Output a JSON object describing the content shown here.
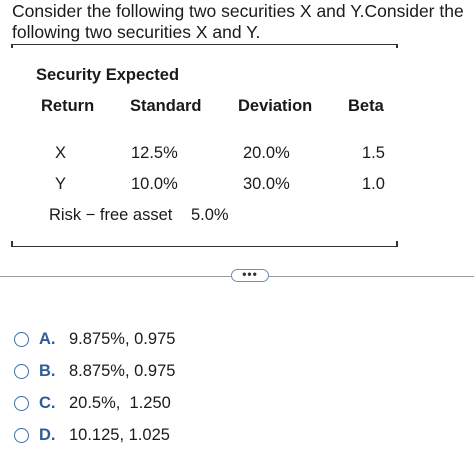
{
  "question": "Consider the following two securities X and Y.Consider the following two securities X and Y.",
  "table": {
    "header1": "Security Expected",
    "headers": [
      "Return",
      "Standard",
      "Deviation",
      "Beta"
    ],
    "rows": [
      {
        "name": "X",
        "expected_return": "12.5%",
        "std_dev": "20.0%",
        "beta": "1.5"
      },
      {
        "name": "Y",
        "expected_return": "10.0%",
        "std_dev": "30.0%",
        "beta": "1.0"
      }
    ],
    "risk_free_label": "Risk − free asset",
    "risk_free_value": "5.0%"
  },
  "more_button": "•••",
  "options": [
    {
      "letter": "A.",
      "text": "9.875%, 0.975"
    },
    {
      "letter": "B.",
      "text": "8.875%, 0.975"
    },
    {
      "letter": "C.",
      "text": "20.5%,  1.250"
    },
    {
      "letter": "D.",
      "text": "10.125, 1.025"
    }
  ],
  "colors": {
    "accent": "#2f5d9b",
    "radio_border": "#3f6ba8"
  }
}
